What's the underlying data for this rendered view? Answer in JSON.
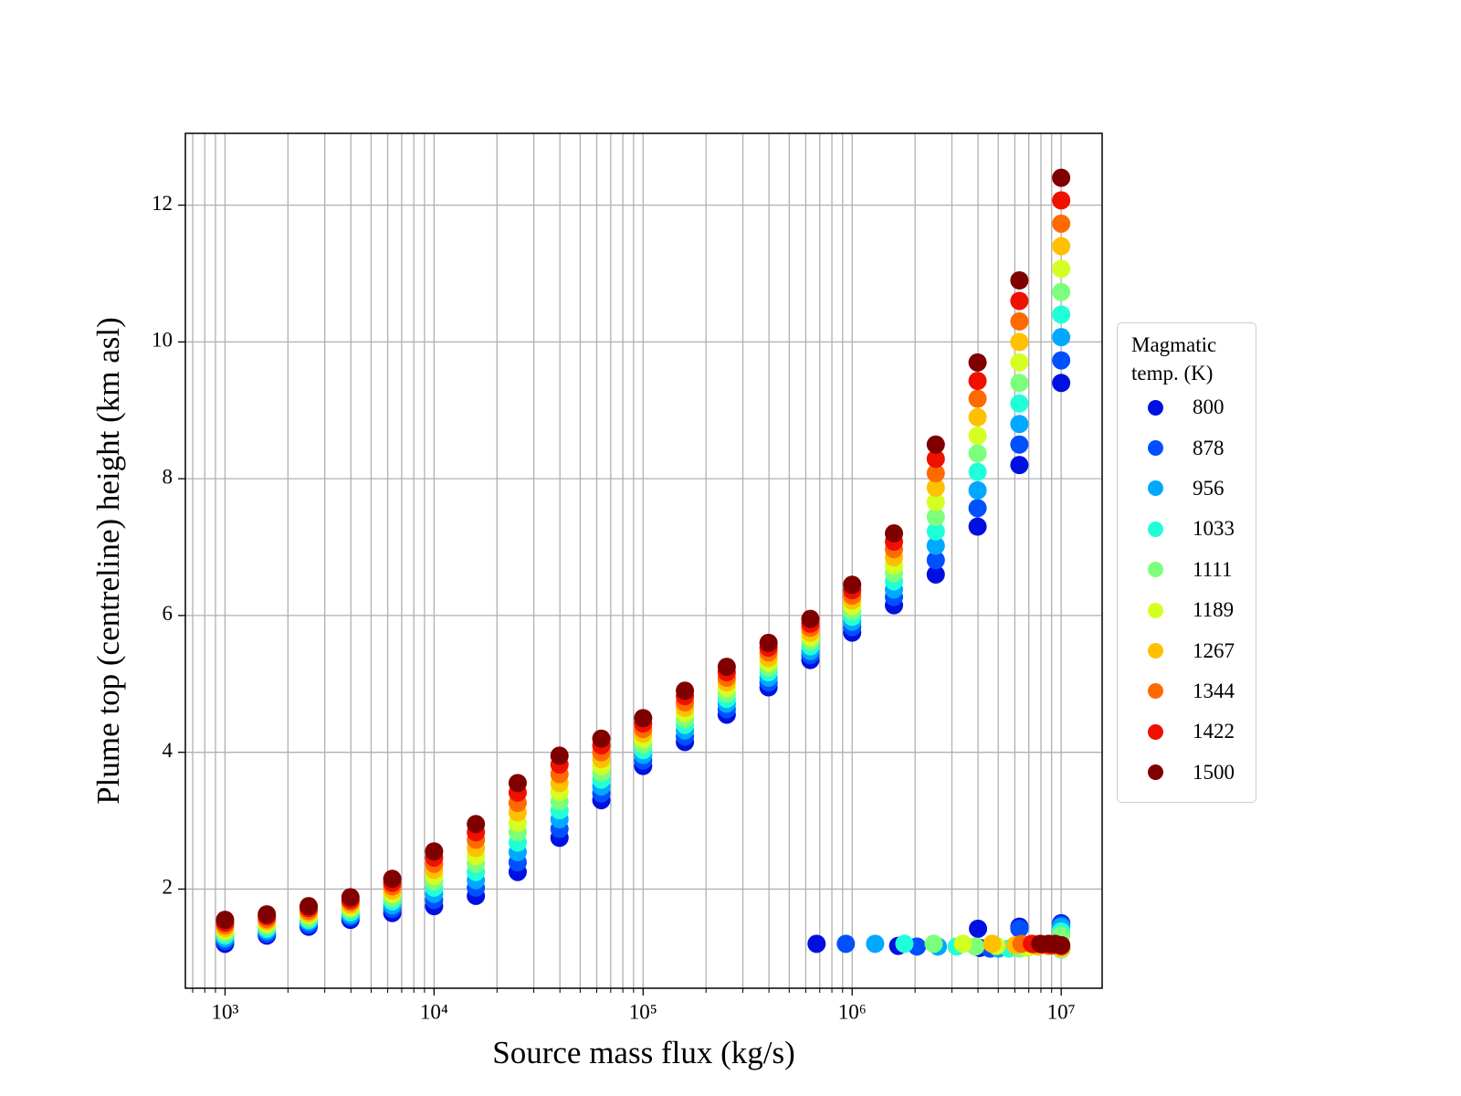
{
  "chart_data": {
    "type": "scatter",
    "xlabel": "Source mass flux (kg/s)",
    "ylabel": "Plume top (centreline) height (km asl)",
    "xscale": "log",
    "xlim": [
      646,
      15700000
    ],
    "ylim": [
      0.55,
      13.05
    ],
    "xticks": [
      {
        "value": 1000,
        "label": "10³"
      },
      {
        "value": 10000,
        "label": "10⁴"
      },
      {
        "value": 100000,
        "label": "10⁵"
      },
      {
        "value": 1000000,
        "label": "10⁶"
      },
      {
        "value": 10000000,
        "label": "10⁷"
      }
    ],
    "yticks": [
      2,
      4,
      6,
      8,
      10,
      12
    ],
    "grid": true,
    "legend_title": "Magmatic temp. (K)",
    "legend": "right",
    "series": [
      {
        "name": "800",
        "color": "#0010e0",
        "x": [
          1000,
          1585,
          2512,
          3981,
          6310,
          10000,
          15849,
          25119,
          39811,
          63096,
          100000,
          158489,
          251189,
          398107,
          630957,
          1000000,
          1584893,
          2511886,
          3981072,
          6309573,
          10000000,
          676000,
          1660000,
          4074000,
          10000000,
          4000000,
          6310000,
          10000000
        ],
        "values": [
          1.2,
          1.32,
          1.45,
          1.55,
          1.65,
          1.75,
          1.9,
          2.25,
          2.75,
          3.3,
          3.8,
          4.15,
          4.55,
          4.95,
          5.35,
          5.75,
          6.15,
          6.6,
          7.3,
          8.2,
          9.4,
          1.2,
          1.17,
          1.14,
          1.12,
          1.42,
          1.45,
          1.5
        ]
      },
      {
        "name": "878",
        "color": "#0050ff",
        "x": [
          1000,
          1585,
          2512,
          3981,
          6310,
          10000,
          15849,
          25119,
          39811,
          63096,
          100000,
          158489,
          251189,
          398107,
          630957,
          1000000,
          1584893,
          2511886,
          3981072,
          6309573,
          10000000,
          933000,
          2042000,
          4571000,
          10000000,
          6310000,
          10000000
        ],
        "values": [
          1.24,
          1.35,
          1.48,
          1.59,
          1.71,
          1.84,
          2.02,
          2.39,
          2.88,
          3.4,
          3.88,
          4.23,
          4.63,
          5.02,
          5.42,
          5.83,
          6.27,
          6.81,
          7.57,
          8.5,
          9.73,
          1.2,
          1.16,
          1.13,
          1.12,
          1.42,
          1.48
        ]
      },
      {
        "name": "956",
        "color": "#00a8ff",
        "x": [
          1000,
          1585,
          2512,
          3981,
          6310,
          10000,
          15849,
          25119,
          39811,
          63096,
          100000,
          158489,
          251189,
          398107,
          630957,
          1000000,
          1584893,
          2511886,
          3981072,
          6309573,
          10000000,
          1288000,
          2570000,
          5012000,
          10000000,
          10000000
        ],
        "values": [
          1.28,
          1.39,
          1.52,
          1.62,
          1.76,
          1.93,
          2.13,
          2.54,
          3.02,
          3.5,
          3.96,
          4.32,
          4.71,
          5.09,
          5.48,
          5.91,
          6.38,
          7.02,
          7.83,
          8.8,
          10.07,
          1.2,
          1.16,
          1.13,
          1.12,
          1.45
        ]
      },
      {
        "name": "1033",
        "color": "#20ffd8",
        "x": [
          1000,
          1585,
          2512,
          3981,
          6310,
          10000,
          15849,
          25119,
          39811,
          63096,
          100000,
          158489,
          251189,
          398107,
          630957,
          1000000,
          1584893,
          2511886,
          3981072,
          6309573,
          10000000,
          1778000,
          3162000,
          5623000,
          10000000,
          10000000
        ],
        "values": [
          1.32,
          1.42,
          1.55,
          1.66,
          1.82,
          2.02,
          2.25,
          2.68,
          3.15,
          3.6,
          4.03,
          4.4,
          4.78,
          5.17,
          5.55,
          5.98,
          6.5,
          7.23,
          8.1,
          9.1,
          10.4,
          1.2,
          1.16,
          1.13,
          1.12,
          1.38
        ]
      },
      {
        "name": "1111",
        "color": "#7cff7a",
        "x": [
          1000,
          1585,
          2512,
          3981,
          6310,
          10000,
          15849,
          25119,
          39811,
          63096,
          100000,
          158489,
          251189,
          398107,
          630957,
          1000000,
          1584893,
          2511886,
          3981072,
          6309573,
          10000000,
          2455000,
          3890000,
          6310000,
          10000000,
          10000000
        ],
        "values": [
          1.36,
          1.46,
          1.58,
          1.7,
          1.87,
          2.11,
          2.37,
          2.83,
          3.28,
          3.7,
          4.11,
          4.48,
          4.86,
          5.24,
          5.62,
          6.06,
          6.62,
          7.44,
          8.37,
          9.4,
          10.73,
          1.2,
          1.16,
          1.13,
          1.12,
          1.32
        ]
      },
      {
        "name": "1189",
        "color": "#d4ff22",
        "x": [
          1000,
          1585,
          2512,
          3981,
          6310,
          10000,
          15849,
          25119,
          39811,
          63096,
          100000,
          158489,
          251189,
          398107,
          630957,
          1000000,
          1584893,
          2511886,
          3981072,
          6309573,
          10000000,
          3388000,
          4898000,
          6918000,
          10000000
        ],
        "values": [
          1.39,
          1.49,
          1.62,
          1.73,
          1.93,
          2.19,
          2.48,
          2.97,
          3.42,
          3.8,
          4.19,
          4.57,
          4.94,
          5.31,
          5.68,
          6.14,
          6.73,
          7.66,
          8.63,
          9.7,
          11.07,
          1.2,
          1.17,
          1.14,
          1.13
        ]
      },
      {
        "name": "1267",
        "color": "#ffc000",
        "x": [
          1000,
          1585,
          2512,
          3981,
          6310,
          10000,
          15849,
          25119,
          39811,
          63096,
          100000,
          158489,
          251189,
          398107,
          630957,
          1000000,
          1584893,
          2511886,
          3981072,
          6309573,
          10000000,
          4677000,
          6026000,
          7762000,
          10000000
        ],
        "values": [
          1.43,
          1.53,
          1.65,
          1.77,
          1.98,
          2.28,
          2.6,
          3.12,
          3.55,
          3.9,
          4.27,
          4.65,
          5.02,
          5.38,
          5.75,
          6.22,
          6.85,
          7.87,
          8.9,
          10.0,
          11.4,
          1.2,
          1.18,
          1.16,
          1.14
        ]
      },
      {
        "name": "1344",
        "color": "#ff6a00",
        "x": [
          1000,
          1585,
          2512,
          3981,
          6310,
          10000,
          15849,
          25119,
          39811,
          63096,
          100000,
          158489,
          251189,
          398107,
          630957,
          1000000,
          1584893,
          2511886,
          3981072,
          6309573,
          10000000,
          6457000,
          7413000,
          8710000,
          10000000
        ],
        "values": [
          1.47,
          1.56,
          1.68,
          1.81,
          2.04,
          2.37,
          2.72,
          3.26,
          3.68,
          4.0,
          4.34,
          4.73,
          5.09,
          5.46,
          5.82,
          6.29,
          6.97,
          8.08,
          9.17,
          10.3,
          11.73,
          1.2,
          1.19,
          1.17,
          1.16
        ]
      },
      {
        "name": "1422",
        "color": "#f01000",
        "x": [
          1000,
          1585,
          2512,
          3981,
          6310,
          10000,
          15849,
          25119,
          39811,
          63096,
          100000,
          158489,
          251189,
          398107,
          630957,
          1000000,
          1584893,
          2511886,
          3981072,
          6309573,
          10000000,
          7244000,
          8128000,
          9120000,
          10000000
        ],
        "values": [
          1.51,
          1.6,
          1.72,
          1.84,
          2.09,
          2.46,
          2.83,
          3.41,
          3.82,
          4.1,
          4.42,
          4.82,
          5.17,
          5.53,
          5.88,
          6.37,
          7.08,
          8.29,
          9.43,
          10.6,
          12.07,
          1.2,
          1.19,
          1.18,
          1.17
        ]
      },
      {
        "name": "1500",
        "color": "#800000",
        "x": [
          1000,
          1585,
          2512,
          3981,
          6310,
          10000,
          15849,
          25119,
          39811,
          63096,
          100000,
          158489,
          251189,
          398107,
          630957,
          1000000,
          1584893,
          2511886,
          3981072,
          6309573,
          10000000,
          7943000,
          8710000,
          9333000,
          10000000
        ],
        "values": [
          1.55,
          1.63,
          1.75,
          1.88,
          2.15,
          2.55,
          2.95,
          3.55,
          3.95,
          4.2,
          4.5,
          4.9,
          5.25,
          5.6,
          5.95,
          6.45,
          7.2,
          8.5,
          9.7,
          10.9,
          12.4,
          1.2,
          1.2,
          1.2,
          1.18
        ]
      }
    ]
  }
}
